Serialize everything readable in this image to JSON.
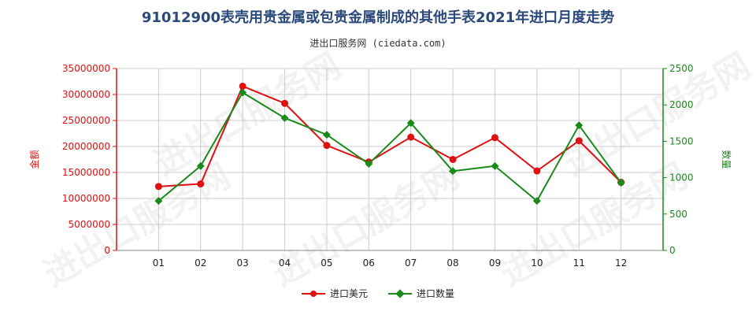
{
  "title": "91012900表壳用贵金属或包贵金属制成的其他手表2021年进口月度走势",
  "subtitle": "进出口服务网 (ciedata.com)",
  "watermark": "进出口服务网",
  "colors": {
    "usd": "#e01010",
    "qty": "#1a8a1a",
    "left_axis": "#e01010",
    "right_axis": "#1a8a1a",
    "grid": "#cccccc"
  },
  "chart_data": {
    "type": "line",
    "categories": [
      "01",
      "02",
      "03",
      "04",
      "05",
      "06",
      "07",
      "08",
      "09",
      "10",
      "11",
      "12"
    ],
    "y_left": {
      "label": "金额",
      "ylim": [
        0,
        35000000
      ],
      "ticks": [
        "0",
        "5000000",
        "10000000",
        "15000000",
        "20000000",
        "25000000",
        "30000000",
        "35000000"
      ]
    },
    "y_right": {
      "label": "数量",
      "ylim": [
        0,
        2500
      ],
      "ticks": [
        "0",
        "500",
        "1000",
        "1500",
        "2000",
        "2500"
      ]
    },
    "series": [
      {
        "name": "进口美元",
        "axis": "left",
        "marker": "circle",
        "values": [
          12300000,
          12800000,
          31600000,
          28300000,
          20200000,
          17000000,
          21800000,
          17500000,
          21700000,
          15300000,
          21100000,
          13100000
        ]
      },
      {
        "name": "进口数量",
        "axis": "right",
        "marker": "diamond",
        "values": [
          680,
          1160,
          2170,
          1820,
          1590,
          1190,
          1750,
          1090,
          1160,
          680,
          1720,
          930
        ]
      }
    ],
    "grid": true,
    "legend_position": "bottom"
  }
}
